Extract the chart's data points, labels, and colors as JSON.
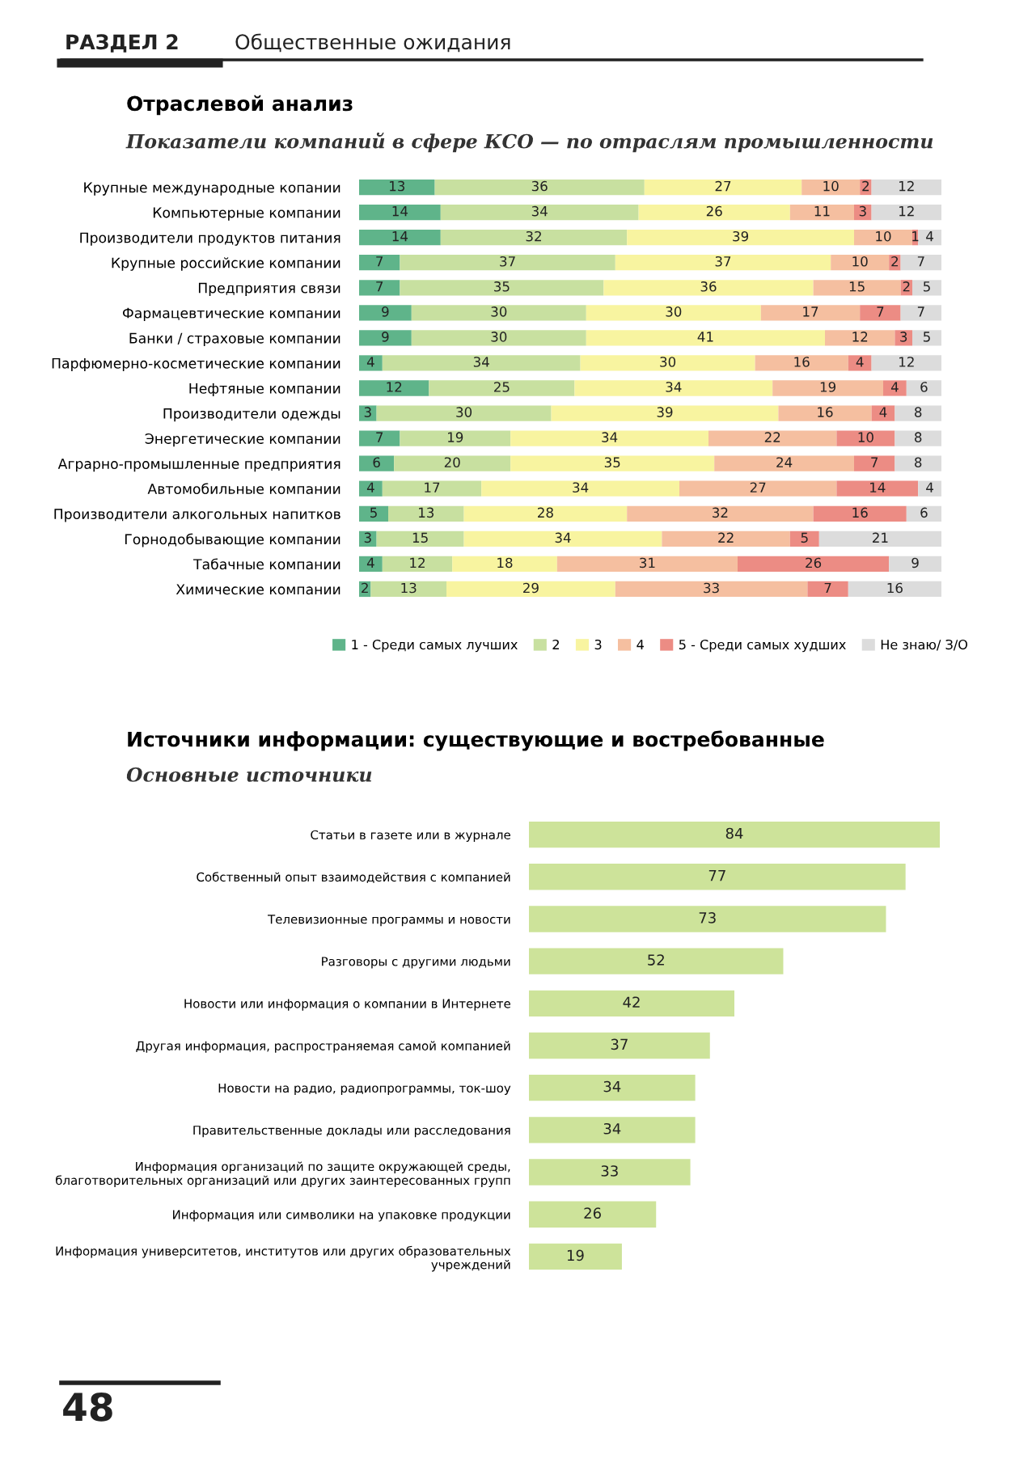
{
  "chart_data": [
    {
      "type": "bar",
      "orientation": "horizontal",
      "stacked": true,
      "data_labels": true,
      "legend": "bottom",
      "tick_labels": "y",
      "xlim": [
        0,
        100
      ],
      "annotations": [
        "РАЗДЕЛ 2",
        "Общественные ожидания"
      ],
      "title": "Отраслевой анализ",
      "subtitle": "Показатели компаний в сфере КСО — по отраслям промышленности",
      "categories": [
        "Крупные международные копании",
        "Компьютерные компании",
        "Производители продуктов питания",
        "Крупные российские компании",
        "Предприятия связи",
        "Фармацевтические компании",
        "Банки / страховые компании",
        "Парфюмерно-косметические компании",
        "Нефтяные компании",
        "Производители одежды",
        "Энергетические компании",
        "Аграрно-промышленные предприятия",
        "Автомобильные компании",
        "Производители алкогольных напитков",
        "Горнодобывающие компании",
        "Табачные компании",
        "Химические компании"
      ],
      "series": [
        {
          "name": "1 - Среди самых лучших",
          "color": "#5fb48a",
          "values": [
            13,
            14,
            14,
            7,
            7,
            9,
            9,
            4,
            12,
            3,
            7,
            6,
            4,
            5,
            3,
            4,
            2
          ]
        },
        {
          "name": "2",
          "color": "#c8e0a0",
          "values": [
            36,
            34,
            32,
            37,
            35,
            30,
            30,
            34,
            25,
            30,
            19,
            20,
            17,
            13,
            15,
            12,
            13
          ]
        },
        {
          "name": "3",
          "color": "#f8f4a0",
          "values": [
            27,
            26,
            39,
            37,
            36,
            30,
            41,
            30,
            34,
            39,
            34,
            35,
            34,
            28,
            34,
            18,
            29
          ]
        },
        {
          "name": "4",
          "color": "#f5bfa0",
          "values": [
            10,
            11,
            10,
            10,
            15,
            17,
            12,
            16,
            19,
            16,
            22,
            24,
            27,
            32,
            22,
            31,
            33
          ]
        },
        {
          "name": "5 - Среди самых худших",
          "color": "#ec8c84",
          "values": [
            2,
            3,
            1,
            2,
            2,
            7,
            3,
            4,
            4,
            4,
            10,
            7,
            14,
            16,
            5,
            26,
            7
          ]
        },
        {
          "name": "Не знаю/ З/О",
          "color": "#dcdcdc",
          "values": [
            12,
            12,
            4,
            7,
            5,
            7,
            5,
            12,
            6,
            8,
            8,
            8,
            4,
            6,
            21,
            9,
            16
          ]
        }
      ]
    },
    {
      "type": "bar",
      "orientation": "horizontal",
      "data_labels": true,
      "tick_labels": "y",
      "xlim": [
        0,
        84
      ],
      "color": "#cde39a",
      "annotations": [
        "48"
      ],
      "title": "Источники информации: существующие и востребованные",
      "subtitle": "Основные источники",
      "categories": [
        "Статьи в газете или в журнале",
        "Собственный опыт взаимодействия с компанией",
        "Телевизионные программы и новости",
        "Разговоры с другими людьми",
        "Новости или информация о компании в Интернете",
        "Другая информация, распространяемая самой компанией",
        "Новости на радио, радиопрограммы, ток-шоу",
        "Правительственные доклады или расследования",
        "Информация организаций по защите окружающей среды,\nблаготворительных организаций или других заинтересованных групп",
        "Информация или символики на упаковке продукции",
        "Информация университетов, институтов или других образовательных\nучреждений"
      ],
      "values": [
        84,
        77,
        73,
        52,
        42,
        37,
        34,
        34,
        33,
        26,
        19
      ]
    }
  ]
}
